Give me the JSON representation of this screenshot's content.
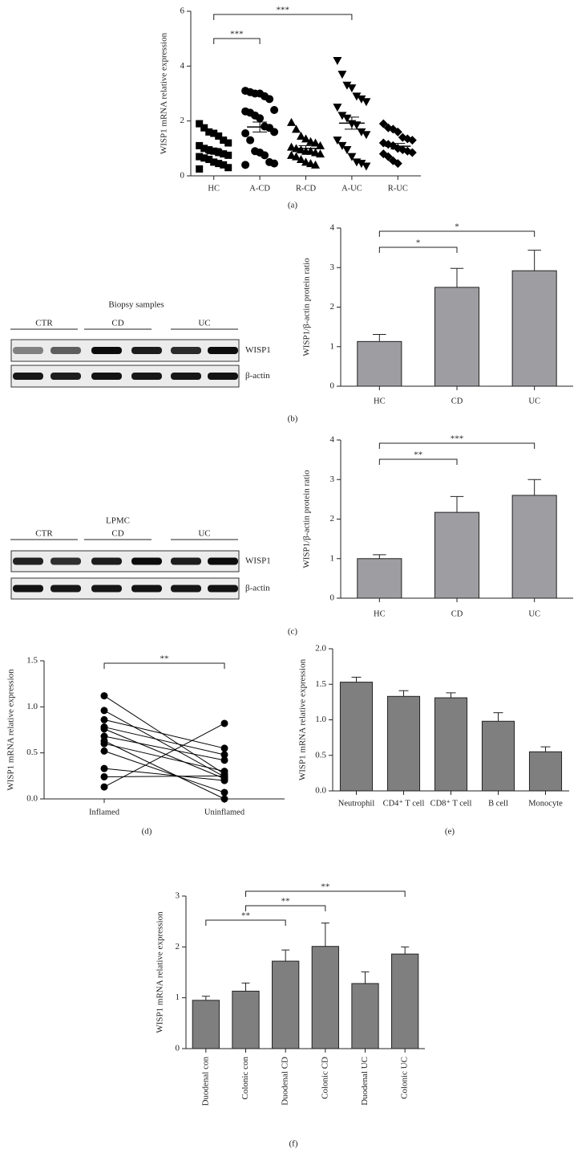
{
  "chart_data": [
    {
      "type": "dot",
      "panel_label": "(a)",
      "y_label": "WISP1 mRNA relative expression",
      "color": "#000000",
      "categories": [
        "HC",
        "A-CD",
        "R-CD",
        "A-UC",
        "R-UC"
      ],
      "markers": [
        "square",
        "circle",
        "triangle",
        "triangle-down",
        "diamond"
      ],
      "values": [
        [
          1.9,
          1.75,
          1.6,
          1.55,
          1.45,
          1.3,
          1.2,
          1.1,
          1.0,
          0.95,
          0.9,
          0.85,
          0.8,
          0.75,
          0.7,
          0.65,
          0.6,
          0.5,
          0.45,
          0.4,
          0.3,
          0.25
        ],
        [
          3.1,
          3.05,
          3.0,
          3.0,
          2.9,
          2.8,
          2.4,
          2.35,
          2.3,
          2.2,
          2.1,
          1.8,
          1.75,
          1.6,
          1.55,
          1.3,
          0.9,
          0.85,
          0.75,
          0.5,
          0.45,
          0.4
        ],
        [
          1.95,
          1.7,
          1.45,
          1.35,
          1.25,
          1.2,
          1.1,
          1.05,
          1.0,
          0.95,
          0.9,
          0.9,
          0.85,
          0.8,
          0.75,
          0.7,
          0.6,
          0.5,
          0.45,
          0.4
        ],
        [
          4.2,
          3.7,
          3.3,
          3.2,
          2.9,
          2.8,
          2.7,
          2.5,
          2.2,
          2.1,
          1.9,
          1.85,
          1.6,
          1.5,
          1.3,
          1.1,
          0.95,
          0.7,
          0.5,
          0.45,
          0.35
        ],
        [
          1.9,
          1.75,
          1.7,
          1.6,
          1.4,
          1.35,
          1.3,
          1.2,
          1.15,
          1.1,
          1.0,
          0.95,
          0.9,
          0.85,
          0.8,
          0.7,
          0.55,
          0.45
        ]
      ],
      "means": [
        0.9,
        1.78,
        1.0,
        1.92,
        1.08
      ],
      "errors": [
        0.1,
        0.18,
        0.1,
        0.22,
        0.1
      ],
      "ylim": [
        0,
        6
      ],
      "yticks": [
        0,
        2,
        4,
        6
      ],
      "significance": [
        {
          "from": "HC",
          "to": "A-CD",
          "label": "***"
        },
        {
          "from": "HC",
          "to": "A-UC",
          "label": "***"
        }
      ]
    },
    {
      "type": "bar",
      "panel_label": "(b)",
      "y_label": "WISP1/β-actin protein ratio",
      "color": "#9d9da2",
      "categories": [
        "HC",
        "CD",
        "UC"
      ],
      "values": [
        1.13,
        2.5,
        2.92
      ],
      "errors": [
        0.18,
        0.48,
        0.52
      ],
      "ylim": [
        0,
        4
      ],
      "yticks": [
        0,
        1,
        2,
        3,
        4
      ],
      "significance": [
        {
          "from": "HC",
          "to": "CD",
          "label": "*"
        },
        {
          "from": "HC",
          "to": "UC",
          "label": "*"
        }
      ]
    },
    {
      "type": "bar",
      "panel_label": "(c)",
      "y_label": "WISP1/β-actin protein ratio",
      "color": "#9d9da2",
      "categories": [
        "HC",
        "CD",
        "UC"
      ],
      "values": [
        1.0,
        2.17,
        2.6
      ],
      "errors": [
        0.1,
        0.4,
        0.4
      ],
      "ylim": [
        0,
        4
      ],
      "yticks": [
        0,
        1,
        2,
        3,
        4
      ],
      "significance": [
        {
          "from": "HC",
          "to": "CD",
          "label": "**"
        },
        {
          "from": "HC",
          "to": "UC",
          "label": "***"
        }
      ]
    },
    {
      "type": "paired",
      "panel_label": "(d)",
      "y_label": "WISP1 mRNA relative expression",
      "color": "#000000",
      "categories": [
        "Inflamed",
        "Uninflamed"
      ],
      "values": [
        [
          1.12,
          0.96,
          0.86,
          0.78,
          0.76,
          0.68,
          0.63,
          0.6,
          0.52,
          0.33,
          0.24,
          0.13
        ],
        [
          0.27,
          0.24,
          0.55,
          0.48,
          0.22,
          0.42,
          0.0,
          0.3,
          0.07,
          0.2,
          0.25,
          0.82
        ]
      ],
      "ylim": [
        0,
        1.5
      ],
      "yticks": [
        {
          "value": 0,
          "label": "0.0"
        },
        0.5,
        {
          "value": 1,
          "label": "1.0"
        },
        1.5
      ],
      "significance": [
        {
          "from": "Inflamed",
          "to": "Uninflamed",
          "label": "**"
        }
      ]
    },
    {
      "type": "bar",
      "panel_label": "(e)",
      "y_label": "WISP1 mRNA relative expression",
      "color": "#7f7f7f",
      "categories": [
        "Neutrophil",
        "CD4⁺ T cell",
        "CD8⁺ T cell",
        "B cell",
        "Monocyte"
      ],
      "values": [
        1.53,
        1.33,
        1.31,
        0.98,
        0.55
      ],
      "errors": [
        0.07,
        0.08,
        0.07,
        0.12,
        0.07
      ],
      "ylim": [
        0,
        2
      ],
      "yticks": [
        {
          "value": 0,
          "label": "0.0"
        },
        0.5,
        {
          "value": 1,
          "label": "1.0"
        },
        1.5,
        {
          "value": 2,
          "label": "2.0"
        }
      ]
    },
    {
      "type": "bar",
      "panel_label": "(f)",
      "y_label": "WISP1 mRNA relative expression",
      "color": "#7f7f7f",
      "categories": [
        "Duodenal con",
        "Colonic con",
        "Duodenal CD",
        "Colonic CD",
        "Duodenal UC",
        "Colonic UC"
      ],
      "values": [
        0.95,
        1.13,
        1.72,
        2.01,
        1.28,
        1.86
      ],
      "errors": [
        0.08,
        0.16,
        0.22,
        0.46,
        0.23,
        0.14
      ],
      "ylim": [
        0,
        3
      ],
      "yticks": [
        0,
        1,
        2,
        3
      ],
      "significance": [
        {
          "from": "Duodenal con",
          "to": "Duodenal CD",
          "label": "**"
        },
        {
          "from": "Colonic con",
          "to": "Colonic CD",
          "label": "**"
        },
        {
          "from": "Colonic con",
          "to": "Colonic UC",
          "label": "**"
        }
      ]
    }
  ],
  "blots": [
    {
      "title": "Biopsy samples",
      "lanes": [
        "CTR",
        "CD",
        "UC"
      ],
      "rows": [
        "WISP1",
        "β-actin"
      ]
    },
    {
      "title": "LPMC",
      "lanes": [
        "CTR",
        "CD",
        "UC"
      ],
      "rows": [
        "WISP1",
        "β-actin"
      ]
    }
  ]
}
